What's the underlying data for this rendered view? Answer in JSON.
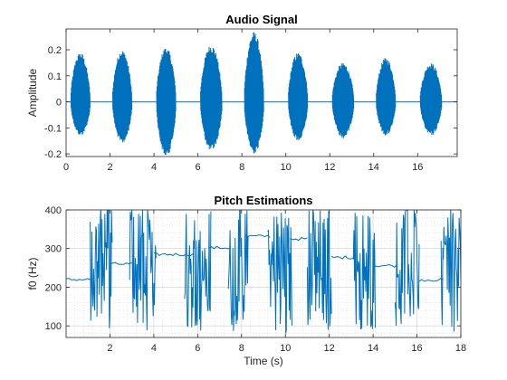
{
  "chart_data": [
    {
      "type": "line",
      "title": "Audio Signal",
      "xlabel": "",
      "ylabel": "Amplitude",
      "xlim": [
        0,
        17.8
      ],
      "ylim": [
        -0.21,
        0.28
      ],
      "xticks": [
        0,
        2,
        4,
        6,
        8,
        10,
        12,
        14,
        16
      ],
      "yticks": [
        -0.2,
        -0.1,
        0,
        0.1,
        0.2
      ],
      "ytick_labels": [
        "-0.2",
        "-0.1",
        "0",
        "0.1",
        "0.2"
      ],
      "grid": false,
      "color": "#0072BD",
      "bursts": [
        {
          "start": 0.2,
          "end": 1.1,
          "max": 0.19,
          "min": -0.13
        },
        {
          "start": 2.1,
          "end": 3.0,
          "max": 0.2,
          "min": -0.16
        },
        {
          "start": 4.1,
          "end": 5.0,
          "max": 0.21,
          "min": -0.21
        },
        {
          "start": 6.1,
          "end": 7.1,
          "max": 0.22,
          "min": -0.19
        },
        {
          "start": 8.1,
          "end": 9.0,
          "max": 0.27,
          "min": -0.2
        },
        {
          "start": 10.1,
          "end": 11.0,
          "max": 0.19,
          "min": -0.15
        },
        {
          "start": 12.1,
          "end": 13.1,
          "max": 0.15,
          "min": -0.14
        },
        {
          "start": 14.1,
          "end": 15.0,
          "max": 0.17,
          "min": -0.13
        },
        {
          "start": 16.1,
          "end": 17.1,
          "max": 0.15,
          "min": -0.13
        }
      ]
    },
    {
      "type": "line",
      "title": "Pitch Estimations",
      "xlabel": "Time (s)",
      "ylabel": "f0 (Hz)",
      "xlim": [
        0,
        18
      ],
      "ylim": [
        70,
        400
      ],
      "xticks": [
        2,
        4,
        6,
        8,
        10,
        12,
        14,
        16,
        18
      ],
      "yticks": [
        100,
        200,
        300,
        400
      ],
      "grid": true,
      "minor_grid": true,
      "color": "#0072BD",
      "baseline_segments": [
        {
          "start": 0.0,
          "end": 1.1,
          "f0": 220
        },
        {
          "start": 2.0,
          "end": 3.0,
          "f0": 260
        },
        {
          "start": 4.0,
          "end": 5.5,
          "f0": 285
        },
        {
          "start": 5.5,
          "end": 5.8,
          "f0": 285
        },
        {
          "start": 6.5,
          "end": 7.5,
          "f0": 302
        },
        {
          "start": 8.2,
          "end": 9.3,
          "f0": 332
        },
        {
          "start": 10.2,
          "end": 11.0,
          "f0": 325
        },
        {
          "start": 12.1,
          "end": 13.1,
          "f0": 277
        },
        {
          "start": 14.1,
          "end": 15.1,
          "f0": 256
        },
        {
          "start": 16.1,
          "end": 17.2,
          "f0": 219
        }
      ],
      "noisy_regions": [
        {
          "start": 1.1,
          "end": 2.1
        },
        {
          "start": 2.9,
          "end": 4.1
        },
        {
          "start": 5.4,
          "end": 6.6
        },
        {
          "start": 7.4,
          "end": 8.3
        },
        {
          "start": 9.2,
          "end": 10.3
        },
        {
          "start": 11.0,
          "end": 12.1
        },
        {
          "start": 13.1,
          "end": 14.1
        },
        {
          "start": 15.0,
          "end": 16.1
        },
        {
          "start": 17.1,
          "end": 18.0
        }
      ]
    }
  ]
}
